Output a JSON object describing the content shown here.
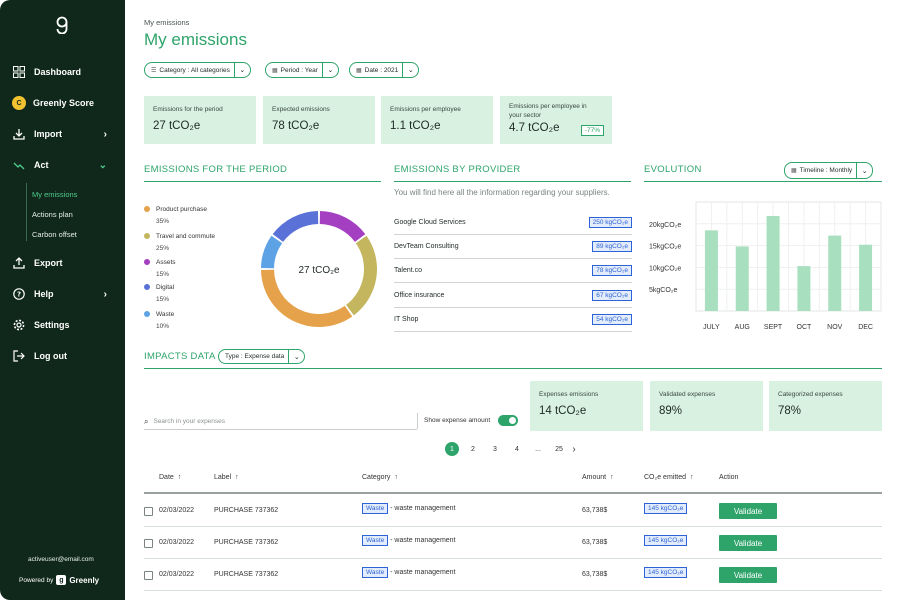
{
  "sidebar": {
    "nav": [
      {
        "label": "Dashboard",
        "icon": "dashboard-icon"
      },
      {
        "label": "Greenly Score",
        "icon": "score-icon",
        "badge": "C"
      },
      {
        "label": "Import",
        "icon": "import-icon"
      },
      {
        "label": "Act",
        "icon": "act-icon"
      },
      {
        "label": "Export",
        "icon": "export-icon"
      },
      {
        "label": "Help",
        "icon": "help-icon"
      },
      {
        "label": "Settings",
        "icon": "gear-icon"
      },
      {
        "label": "Log out",
        "icon": "logout-icon"
      }
    ],
    "sub_items": [
      "My emissions",
      "Actions plan",
      "Carbon offset"
    ],
    "user_email": "activeuser@email.com",
    "powered_by": "Powered by",
    "brand": "Greenly"
  },
  "header": {
    "breadcrumb": "My emissions",
    "title": "My emissions"
  },
  "filters": {
    "category": "Category : All categories",
    "period": "Period : Year",
    "date": "Date : 2021"
  },
  "kpis": [
    {
      "label": "Emissions for the period",
      "value": "27 tCO₂e"
    },
    {
      "label": "Expected emissions",
      "value": "78 tCO₂e"
    },
    {
      "label": "Emissions per employee",
      "value": "1.1 tCO₂e"
    },
    {
      "label": "Emissions per employee in your sector",
      "value": "4.7 tCO₂e",
      "badge": "-77%"
    }
  ],
  "sections": {
    "period": "EMISSIONS FOR THE PERIOD",
    "provider": "EMISSIONS BY PROVIDER",
    "evolution": "EVOLUTION",
    "impacts": "IMPACTS DATA"
  },
  "donut": {
    "center": "27 tCO₂e",
    "segments": [
      {
        "label": "Product purchase",
        "pct": "35%",
        "value": 35,
        "color": "#e5a24a"
      },
      {
        "label": "Travel and commute",
        "pct": "25%",
        "value": 25,
        "color": "#c4b65e"
      },
      {
        "label": "Assets",
        "pct": "15%",
        "value": 15,
        "color": "#a53fc2"
      },
      {
        "label": "Digital",
        "pct": "15%",
        "value": 15,
        "color": "#5a72d8"
      },
      {
        "label": "Waste",
        "pct": "10%",
        "value": 10,
        "color": "#5ea2e6"
      }
    ]
  },
  "provider": {
    "subtitle": "You will find here all the information regarding your suppliers.",
    "rows": [
      {
        "name": "Google Cloud Services",
        "value": "250 kgCO₂e"
      },
      {
        "name": "DevTeam Consulting",
        "value": "89 kgCO₂e"
      },
      {
        "name": "Talent.co",
        "value": "78 kgCO₂e"
      },
      {
        "name": "Office insurance",
        "value": "67 kgCO₂e"
      },
      {
        "name": "IT Shop",
        "value": "54 kgCO₂e"
      }
    ]
  },
  "timeline": "Timeline : Monthly",
  "chart_data": {
    "type": "bar",
    "categories": [
      "JULY",
      "AUG",
      "SEPT",
      "OCT",
      "NOV",
      "DEC"
    ],
    "values": [
      18500,
      14800,
      21800,
      10300,
      17300,
      15200
    ],
    "ytick_labels": [
      "20kgCO₂e",
      "15kgCO₂e",
      "10kgCO₂e",
      "5kgCO₂e"
    ],
    "yticks": [
      20000,
      15000,
      10000,
      5000
    ],
    "ylim": [
      0,
      25000
    ],
    "bar_color": "#a8dfbe",
    "grid": true
  },
  "impacts": {
    "type_filter": "Type : Expense data",
    "kpis": [
      {
        "label": "Expenses emissions",
        "value": "14 tCO₂e"
      },
      {
        "label": "Validated expenses",
        "value": "89%"
      },
      {
        "label": "Categorized expenses",
        "value": "78%"
      }
    ],
    "search_placeholder": "Search in your expenses",
    "toggle_label": "Show expense amount",
    "pages": [
      "1",
      "2",
      "3",
      "4",
      "...",
      "25"
    ],
    "columns": [
      "Date",
      "Label",
      "Category",
      "Amount",
      "CO₂e emitted",
      "Action"
    ],
    "rows": [
      {
        "date": "02/03/2022",
        "label": "PURCHASE 737362",
        "category": "Waste",
        "category_detail": "- waste management",
        "amount": "63,738$",
        "co2": "145 kgCO₂e",
        "action": "Validate"
      },
      {
        "date": "02/03/2022",
        "label": "PURCHASE 737362",
        "category": "Waste",
        "category_detail": "- waste management",
        "amount": "63,738$",
        "co2": "145 kgCO₂e",
        "action": "Validate"
      },
      {
        "date": "02/03/2022",
        "label": "PURCHASE 737362",
        "category": "Waste",
        "category_detail": "- waste management",
        "amount": "63,738$",
        "co2": "145 kgCO₂e",
        "action": "Validate"
      }
    ]
  }
}
